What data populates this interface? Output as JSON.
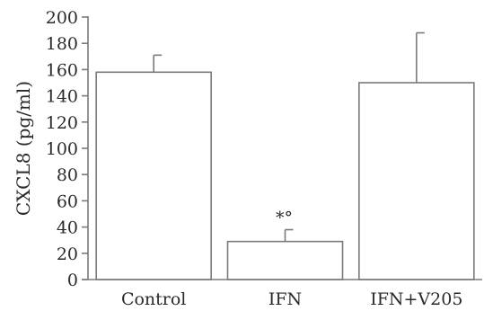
{
  "chart_data": {
    "type": "bar",
    "title": "",
    "xlabel": "",
    "ylabel": "CXCL8 (pg/ml)",
    "ylim": [
      0,
      200
    ],
    "yticks": [
      0,
      20,
      40,
      60,
      80,
      100,
      120,
      140,
      160,
      180,
      200
    ],
    "categories": [
      "Control",
      "IFN",
      "IFN+V205"
    ],
    "values": [
      158,
      29,
      150
    ],
    "error_upper": [
      171,
      38,
      188
    ],
    "annotations": [
      {
        "category": "IFN",
        "text": "*°"
      }
    ],
    "grid": false,
    "legend": "none"
  }
}
